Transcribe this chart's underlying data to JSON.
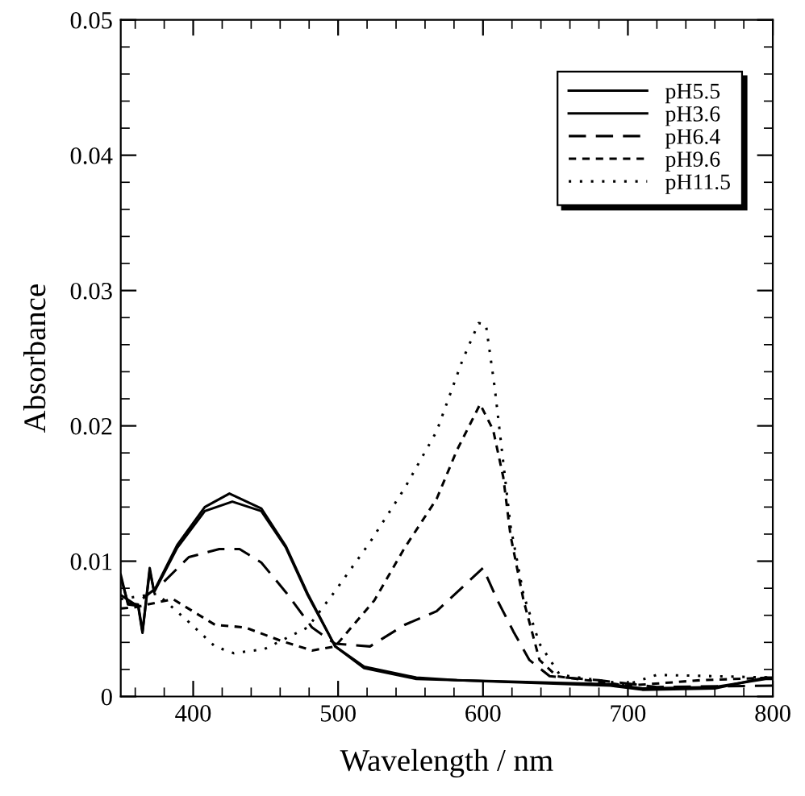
{
  "chart_data": {
    "type": "line",
    "xlabel": "Wavelength / nm",
    "ylabel": "Absorbance",
    "xlim": [
      350,
      800
    ],
    "ylim": [
      0,
      0.05
    ],
    "xticks": [
      400,
      500,
      600,
      700,
      800,
      {
        "value": 360,
        "label": null
      },
      {
        "value": 380,
        "label": null
      },
      {
        "value": 420,
        "label": null
      },
      {
        "value": 440,
        "label": null
      },
      {
        "value": 460,
        "label": null
      },
      {
        "value": 480,
        "label": null
      },
      {
        "value": 520,
        "label": null
      },
      {
        "value": 540,
        "label": null
      },
      {
        "value": 560,
        "label": null
      },
      {
        "value": 580,
        "label": null
      },
      {
        "value": 620,
        "label": null
      },
      {
        "value": 640,
        "label": null
      },
      {
        "value": 660,
        "label": null
      },
      {
        "value": 680,
        "label": null
      },
      {
        "value": 720,
        "label": null
      },
      {
        "value": 740,
        "label": null
      },
      {
        "value": 760,
        "label": null
      },
      {
        "value": 780,
        "label": null
      }
    ],
    "yticks": [
      0,
      0.01,
      0.02,
      0.03,
      0.04,
      0.05,
      {
        "value": 0.002,
        "label": null
      },
      {
        "value": 0.004,
        "label": null
      },
      {
        "value": 0.006,
        "label": null
      },
      {
        "value": 0.008,
        "label": null
      },
      {
        "value": 0.012,
        "label": null
      },
      {
        "value": 0.014,
        "label": null
      },
      {
        "value": 0.016,
        "label": null
      },
      {
        "value": 0.018,
        "label": null
      },
      {
        "value": 0.022,
        "label": null
      },
      {
        "value": 0.024,
        "label": null
      },
      {
        "value": 0.026,
        "label": null
      },
      {
        "value": 0.028,
        "label": null
      },
      {
        "value": 0.032,
        "label": null
      },
      {
        "value": 0.034,
        "label": null
      },
      {
        "value": 0.036,
        "label": null
      },
      {
        "value": 0.038,
        "label": null
      },
      {
        "value": 0.042,
        "label": null
      },
      {
        "value": 0.044,
        "label": null
      },
      {
        "value": 0.046,
        "label": null
      },
      {
        "value": 0.048,
        "label": null
      }
    ],
    "grid": false,
    "legend": "top right",
    "marker": "none",
    "series": [
      {
        "name": "pH5.5",
        "color": "#000000",
        "line_style": "solid",
        "x": [
          350,
          355,
          362,
          365,
          370,
          373,
          389,
          408,
          427,
          447,
          464,
          479,
          498,
          518,
          554,
          582,
          688,
          710,
          760,
          795,
          800
        ],
        "values": [
          0.009,
          0.0068,
          0.0067,
          0.0047,
          0.0095,
          0.0077,
          0.011,
          0.0137,
          0.0144,
          0.0137,
          0.011,
          0.0075,
          0.0037,
          0.0021,
          0.0013,
          0.0012,
          0.0008,
          0.0005,
          0.0006,
          0.0014,
          0.0014
        ]
      },
      {
        "name": "pH3.6",
        "color": "#000000",
        "line_style": "solid",
        "x": [
          350,
          355,
          362,
          365,
          370,
          373,
          389,
          408,
          425,
          447,
          464,
          479,
          498,
          518,
          554,
          582,
          688,
          710,
          760,
          795,
          800
        ],
        "values": [
          0.0088,
          0.0069,
          0.0068,
          0.0048,
          0.0093,
          0.0078,
          0.0112,
          0.014,
          0.015,
          0.0139,
          0.0111,
          0.0076,
          0.0037,
          0.0022,
          0.0014,
          0.0012,
          0.0009,
          0.0006,
          0.0007,
          0.0013,
          0.0013
        ]
      },
      {
        "name": "pH6.4",
        "color": "#000000",
        "line_style": "dashed",
        "x": [
          350,
          360,
          379,
          397,
          418,
          432,
          447,
          464,
          482,
          498,
          522,
          546,
          568,
          589,
          600,
          610,
          621,
          632,
          646,
          680,
          720,
          800
        ],
        "values": [
          0.0075,
          0.0068,
          0.0084,
          0.0103,
          0.0109,
          0.0109,
          0.0099,
          0.0077,
          0.0051,
          0.0039,
          0.0037,
          0.0053,
          0.0063,
          0.0084,
          0.0095,
          0.0071,
          0.0048,
          0.0027,
          0.0015,
          0.0012,
          0.0007,
          0.0008
        ]
      },
      {
        "name": "pH9.6",
        "color": "#000000",
        "line_style": "dashed",
        "x": [
          350,
          360,
          386,
          415,
          436,
          461,
          482,
          498,
          525,
          546,
          568,
          582,
          598,
          607,
          614,
          619,
          628,
          639,
          651,
          700,
          750,
          800
        ],
        "values": [
          0.0065,
          0.0066,
          0.0072,
          0.0053,
          0.0051,
          0.0041,
          0.0034,
          0.0037,
          0.0071,
          0.011,
          0.0146,
          0.0182,
          0.0216,
          0.0197,
          0.0162,
          0.0119,
          0.0071,
          0.0027,
          0.0015,
          0.0008,
          0.0012,
          0.0014
        ]
      },
      {
        "name": "pH11.5",
        "color": "#000000",
        "line_style": "dotted",
        "x": [
          350,
          375,
          397,
          415,
          428,
          449,
          479,
          498,
          522,
          546,
          568,
          586,
          597,
          602,
          608,
          614,
          619,
          628,
          639,
          653,
          700,
          720,
          800
        ],
        "values": [
          0.0072,
          0.0076,
          0.0055,
          0.0037,
          0.0032,
          0.0035,
          0.0051,
          0.0078,
          0.0114,
          0.0154,
          0.0196,
          0.0249,
          0.0276,
          0.0275,
          0.0229,
          0.0173,
          0.0126,
          0.0075,
          0.0039,
          0.0016,
          0.0009,
          0.0016,
          0.0014
        ]
      }
    ]
  }
}
